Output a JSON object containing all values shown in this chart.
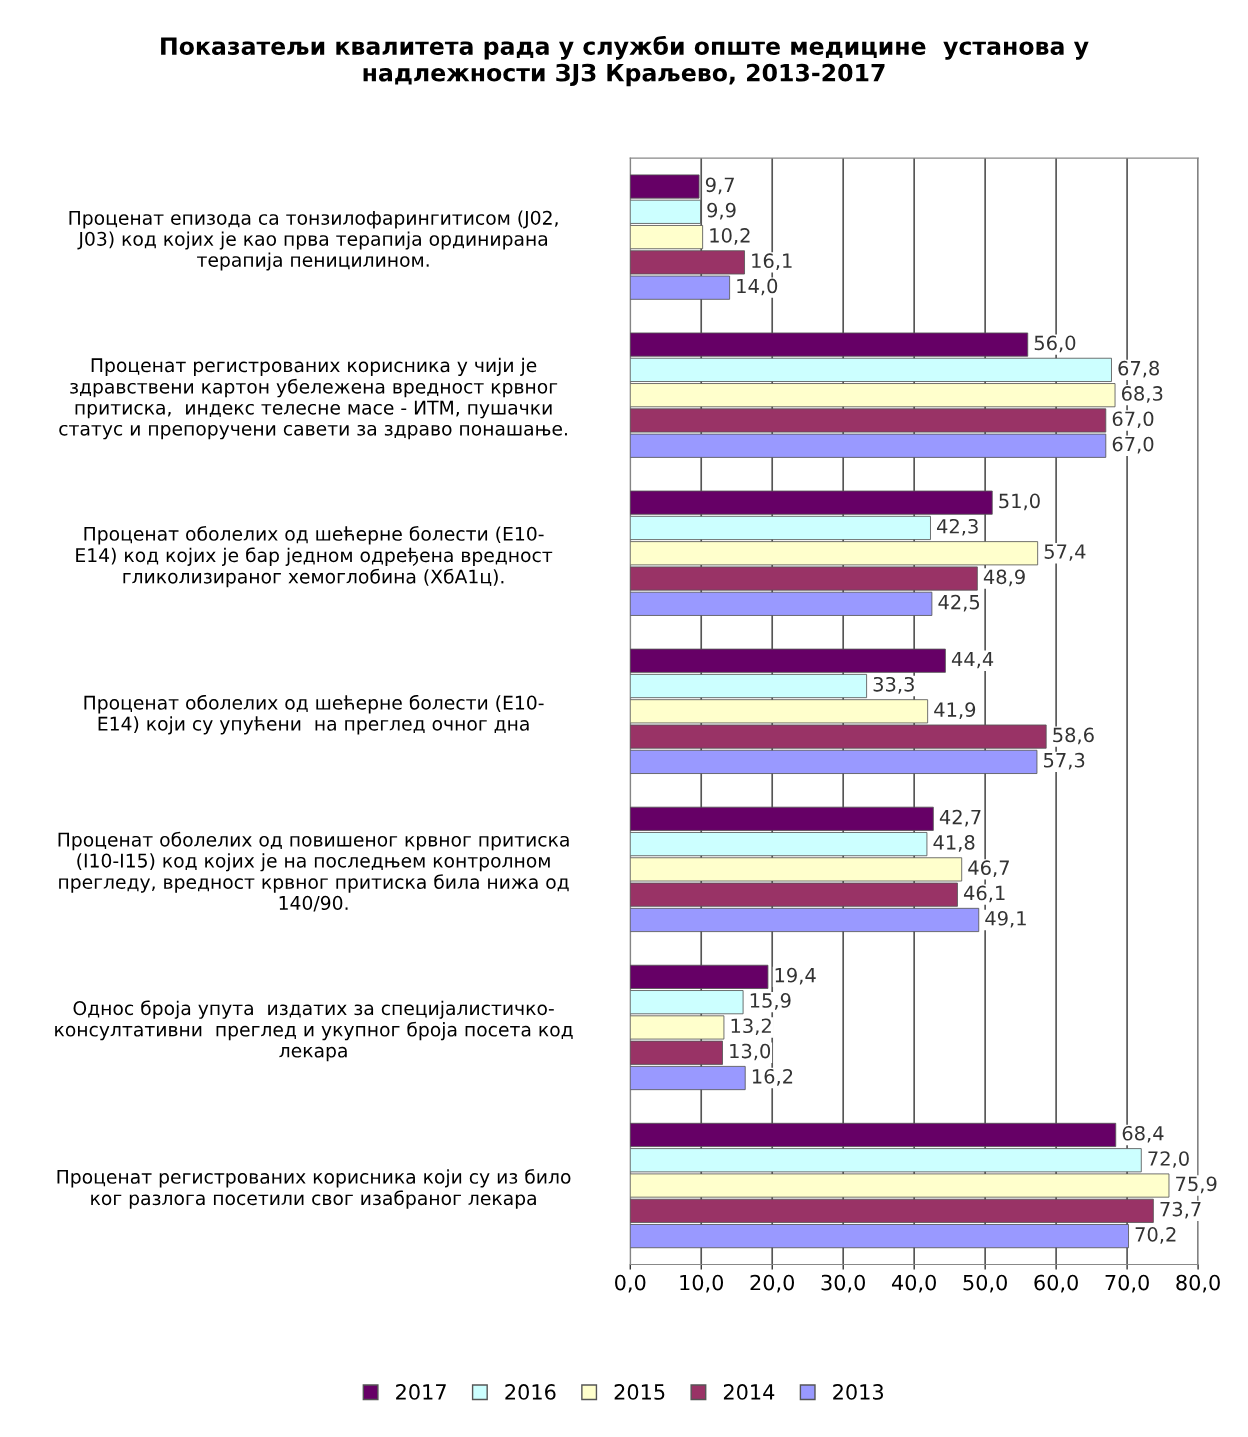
{
  "chart_data": {
    "type": "bar",
    "orientation": "horizontal",
    "title": "Показатељи квалитета рада у служби опште медицине  установа у\nнадлежности ЗЈЗ Краљево, 2013-2017",
    "categories": [
      "Проценат епизода са тонзилофарингитисом (Ј02,\nЈ03) код којих је као прва терапија ординирана\nтерапија пеницилином.",
      "Проценат регистрованих корисника у чији је\nздравствени картон убележена вредност крвног\nпритиска,  индекс телесне масе - ИТМ, пушачки\nстатус и препоручени савети за здраво понашање.",
      "Проценат оболелих од шећерне болести (Е10-\nЕ14) код којих је бар једном одређена вредност\nгликолизираног хемоглобина (ХбА1ц).",
      "Проценат оболелих од шећерне болести (Е10-\nЕ14) који су упућени  на преглед очног дна",
      "Проценат оболелих од повишеног крвног притиска\n(I10-I15) код којих је на последњем контролном\nпрегледу, вредност крвног притиска била нижа од\n140/90.",
      "Однос броја упута  издатих за специјалистичко-\nконсултативни  преглед и укупног броја посета код\nлекара",
      "Проценат регистрованих корисника који су из било\nког разлога посетили свог изабраног лекара"
    ],
    "series": [
      {
        "name": "2017",
        "color": "#660066",
        "values": [
          9.7,
          56.0,
          51.0,
          44.4,
          42.7,
          19.4,
          68.4
        ],
        "value_labels": [
          "9,7",
          "56,0",
          "51,0",
          "44,4",
          "42,7",
          "19,4",
          "68,4"
        ]
      },
      {
        "name": "2016",
        "color": "#ccffff",
        "values": [
          9.9,
          67.8,
          42.3,
          33.3,
          41.8,
          15.9,
          72.0
        ],
        "value_labels": [
          "9,9",
          "67,8",
          "42,3",
          "33,3",
          "41,8",
          "15,9",
          "72,0"
        ]
      },
      {
        "name": "2015",
        "color": "#ffffcc",
        "values": [
          10.2,
          68.3,
          57.4,
          41.9,
          46.7,
          13.2,
          75.9
        ],
        "value_labels": [
          "10,2",
          "68,3",
          "57,4",
          "41,9",
          "46,7",
          "13,2",
          "75,9"
        ]
      },
      {
        "name": "2014",
        "color": "#993366",
        "values": [
          16.1,
          67.0,
          48.9,
          58.6,
          46.1,
          13.0,
          73.7
        ],
        "value_labels": [
          "16,1",
          "67,0",
          "48,9",
          "58,6",
          "46,1",
          "13,0",
          "73,7"
        ]
      },
      {
        "name": "2013",
        "color": "#9999ff",
        "values": [
          14.0,
          67.0,
          42.5,
          57.3,
          49.1,
          16.2,
          70.2
        ],
        "value_labels": [
          "14,0",
          "67,0",
          "42,5",
          "57,3",
          "49,1",
          "16,2",
          "70,2"
        ]
      }
    ],
    "xlim": [
      0,
      80
    ],
    "xticks": [
      {
        "value": 0,
        "label": "0,0"
      },
      {
        "value": 10,
        "label": "10,0"
      },
      {
        "value": 20,
        "label": "20,0"
      },
      {
        "value": 30,
        "label": "30,0"
      },
      {
        "value": 40,
        "label": "40,0"
      },
      {
        "value": 50,
        "label": "50,0"
      },
      {
        "value": 60,
        "label": "60,0"
      },
      {
        "value": 70,
        "label": "70,0"
      },
      {
        "value": 80,
        "label": "80,0"
      }
    ],
    "grid": "x",
    "legend": "bottom"
  }
}
